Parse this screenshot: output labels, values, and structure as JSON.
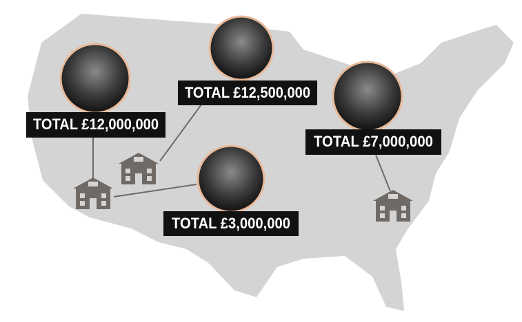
{
  "callouts": [
    "TOTAL £12,000,000",
    "TOTAL £12,500,000",
    "TOTAL £7,000,000",
    "TOTAL £3,000,000"
  ]
}
